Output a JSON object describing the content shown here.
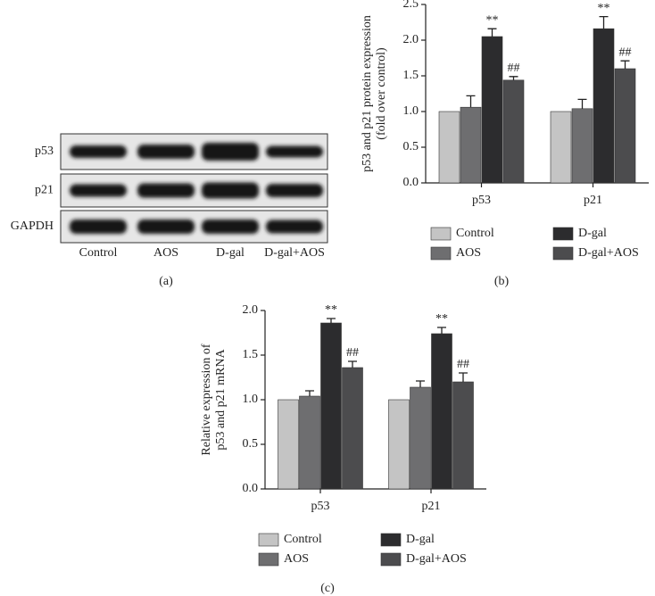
{
  "panel_a": {
    "rows": [
      "p53",
      "p21",
      "GAPDH"
    ],
    "lanes": [
      "Control",
      "AOS",
      "D-gal",
      "D-gal+AOS"
    ],
    "label": "(a)"
  },
  "chart_data": [
    {
      "type": "bar",
      "label": "(b)",
      "ylabel": [
        "p53 and p21 protein expression",
        "(fold over control)"
      ],
      "categories": [
        "p53",
        "p21"
      ],
      "ylim": [
        0,
        2.5
      ],
      "yticks": [
        {
          "value": 0,
          "label": "0.0"
        },
        0.5,
        {
          "value": 1,
          "label": "1.0"
        },
        1.5,
        {
          "value": 2,
          "label": "2.0"
        },
        2.5
      ],
      "series": [
        {
          "name": "Control",
          "color": "#c4c4c4",
          "values": [
            1.0,
            1.0
          ]
        },
        {
          "name": "AOS",
          "color": "#6e6e70",
          "values": [
            1.06,
            1.04
          ],
          "errors": [
            0.16,
            0.13
          ]
        },
        {
          "name": "D-gal",
          "color": "#2c2c2e",
          "values": [
            2.05,
            2.16
          ],
          "errors": [
            0.11,
            0.17
          ],
          "annotations": [
            "**",
            "**"
          ]
        },
        {
          "name": "D-gal+AOS",
          "color": "#4c4c4e",
          "values": [
            1.44,
            1.6
          ],
          "errors": [
            0.05,
            0.11
          ],
          "annotations": [
            "##",
            "##"
          ]
        }
      ]
    },
    {
      "type": "bar",
      "label": "(c)",
      "ylabel": [
        "Relative expression of",
        "p53 and p21 mRNA"
      ],
      "categories": [
        "p53",
        "p21"
      ],
      "ylim": [
        0,
        2.0
      ],
      "yticks": [
        {
          "value": 0,
          "label": "0.0"
        },
        0.5,
        {
          "value": 1,
          "label": "1.0"
        },
        1.5,
        {
          "value": 2,
          "label": "2.0"
        }
      ],
      "series": [
        {
          "name": "Control",
          "color": "#c4c4c4",
          "values": [
            1.0,
            1.0
          ]
        },
        {
          "name": "AOS",
          "color": "#6e6e70",
          "values": [
            1.04,
            1.14
          ],
          "errors": [
            0.06,
            0.07
          ]
        },
        {
          "name": "D-gal",
          "color": "#2c2c2e",
          "values": [
            1.86,
            1.74
          ],
          "errors": [
            0.05,
            0.07
          ],
          "annotations": [
            "**",
            "**"
          ]
        },
        {
          "name": "D-gal+AOS",
          "color": "#4c4c4e",
          "values": [
            1.36,
            1.2
          ],
          "errors": [
            0.07,
            0.1
          ],
          "annotations": [
            "##",
            "##"
          ]
        }
      ]
    }
  ]
}
